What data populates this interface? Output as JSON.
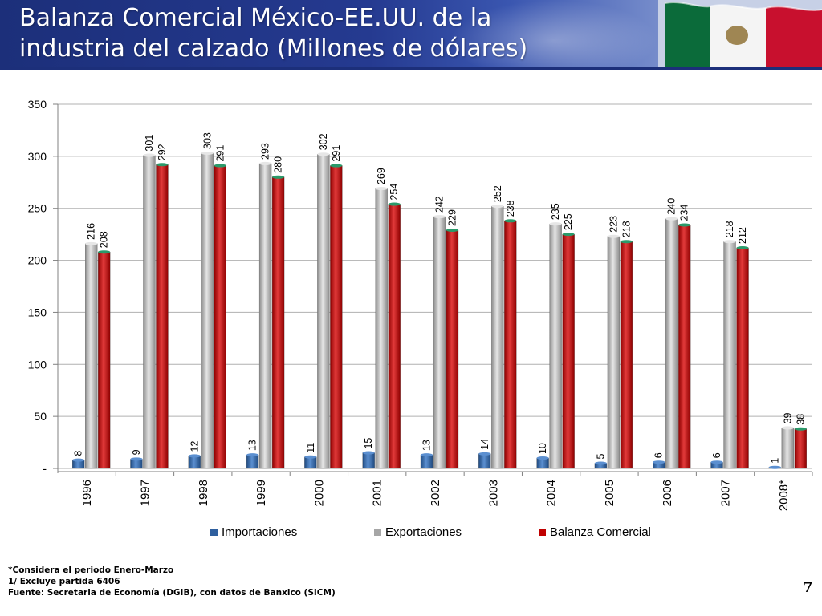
{
  "header": {
    "title_line1": "Balanza Comercial  México-EE.UU. de la",
    "title_line2": "industria del calzado (Millones de dólares)"
  },
  "chart_data": {
    "type": "bar",
    "categories": [
      "1996",
      "1997",
      "1998",
      "1999",
      "2000",
      "2001",
      "2002",
      "2003",
      "2004",
      "2005",
      "2006",
      "2007",
      "2008*"
    ],
    "series": [
      {
        "name": "Importaciones",
        "color": "#2e5f9e",
        "values": [
          8,
          9,
          12,
          13,
          11,
          15,
          13,
          14,
          10,
          5,
          6,
          6,
          1
        ]
      },
      {
        "name": "Exportaciones",
        "color": "#a6a6a6",
        "values": [
          216,
          301,
          303,
          293,
          302,
          269,
          242,
          252,
          235,
          223,
          240,
          218,
          39
        ]
      },
      {
        "name": "Balanza Comercial",
        "color": "#c00000",
        "values": [
          208,
          292,
          291,
          280,
          291,
          254,
          229,
          238,
          225,
          218,
          234,
          212,
          38
        ]
      }
    ],
    "yticks": [
      "350",
      "300",
      "250",
      "200",
      "150",
      "100",
      "50",
      "-"
    ],
    "ylim": [
      0,
      350
    ],
    "grid": true,
    "legend_position": "bottom"
  },
  "footnotes": {
    "note1": "*Considera el periodo Enero-Marzo",
    "note2": "1/ Excluye partida 6406",
    "note3": "Fuente: Secretaria de Economía (DGIB), con datos de Banxico (SICM)"
  },
  "page_number": "7"
}
